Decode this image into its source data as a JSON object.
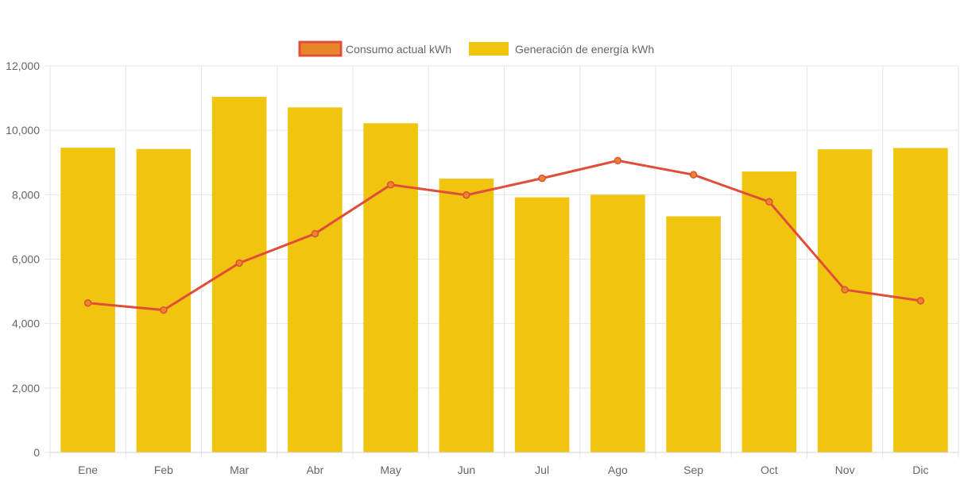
{
  "chart_data": {
    "type": "bar",
    "categories": [
      "Ene",
      "Feb",
      "Mar",
      "Abr",
      "May",
      "Jun",
      "Jul",
      "Ago",
      "Sep",
      "Oct",
      "Nov",
      "Dic"
    ],
    "series": [
      {
        "name": "Consumo actual kWh",
        "type": "line",
        "color": "#e04e39",
        "fill": "#e8862a",
        "values": [
          4640,
          4420,
          5880,
          6790,
          8310,
          7990,
          8510,
          9060,
          8620,
          7780,
          5050,
          4710
        ]
      },
      {
        "name": "Generación de energía kWh",
        "type": "bar",
        "color": "#f0c40f",
        "values": [
          9460,
          9420,
          11040,
          10710,
          10220,
          8500,
          7920,
          8000,
          7330,
          8720,
          9410,
          9450
        ]
      }
    ],
    "ylim": [
      0,
      12000
    ],
    "yticks": [
      "0",
      "2,000",
      "4,000",
      "6,000",
      "8,000",
      "10,000",
      "12,000"
    ],
    "grid": true,
    "legend_position": "top"
  }
}
